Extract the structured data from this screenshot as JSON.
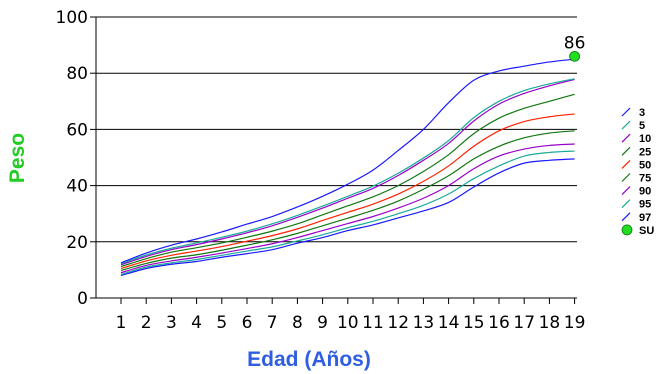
{
  "chart_data": {
    "type": "line",
    "title": "",
    "xlabel": "Edad (Años)",
    "ylabel": "Peso",
    "xlim": [
      1,
      19
    ],
    "ylim": [
      0,
      100
    ],
    "x_ticks": [
      1,
      2,
      3,
      4,
      5,
      6,
      7,
      8,
      9,
      10,
      11,
      12,
      13,
      14,
      15,
      16,
      17,
      18,
      19
    ],
    "y_ticks": [
      0,
      20,
      40,
      60,
      80,
      100
    ],
    "grid": "horizontal",
    "legend_position": "right",
    "x": [
      1,
      2,
      3,
      4,
      5,
      6,
      7,
      8,
      9,
      10,
      11,
      12,
      13,
      14,
      15,
      16,
      17,
      18,
      19
    ],
    "series": [
      {
        "name": "3",
        "color": "#1a1aff",
        "values": [
          8.0,
          10.5,
          12.0,
          13.0,
          14.5,
          15.8,
          17.2,
          19.5,
          21.5,
          24.0,
          26.0,
          28.5,
          31.0,
          34.0,
          39.5,
          44.5,
          48.0,
          49.0,
          49.5
        ]
      },
      {
        "name": "5",
        "color": "#1aaa99",
        "values": [
          8.4,
          11.0,
          12.5,
          13.7,
          15.2,
          16.7,
          18.2,
          20.3,
          22.5,
          25.0,
          27.3,
          30.0,
          33.0,
          37.0,
          42.5,
          47.0,
          50.5,
          51.8,
          52.3
        ]
      },
      {
        "name": "10",
        "color": "#9900cc",
        "values": [
          9.0,
          11.6,
          13.2,
          14.5,
          16.0,
          17.6,
          19.3,
          21.5,
          24.0,
          26.5,
          29.0,
          32.0,
          35.5,
          40.0,
          46.0,
          50.5,
          53.0,
          54.3,
          54.8
        ]
      },
      {
        "name": "25",
        "color": "#117711",
        "values": [
          9.8,
          12.3,
          14.2,
          15.4,
          17.0,
          18.8,
          20.7,
          23.0,
          25.7,
          28.4,
          31.2,
          34.5,
          38.7,
          43.5,
          49.5,
          54.0,
          57.0,
          58.7,
          59.5
        ]
      },
      {
        "name": "50",
        "color": "#ff2200",
        "values": [
          10.5,
          13.2,
          15.2,
          16.7,
          18.3,
          20.2,
          22.2,
          24.6,
          27.6,
          30.5,
          33.4,
          37.0,
          41.5,
          47.0,
          54.0,
          59.5,
          62.8,
          64.5,
          65.5
        ]
      },
      {
        "name": "75",
        "color": "#117711",
        "values": [
          11.2,
          14.0,
          16.3,
          17.9,
          19.6,
          21.6,
          23.8,
          26.4,
          29.6,
          32.8,
          36.0,
          40.0,
          45.0,
          51.0,
          58.5,
          64.0,
          67.5,
          70.0,
          72.5
        ]
      },
      {
        "name": "90",
        "color": "#9900cc",
        "values": [
          11.8,
          14.8,
          17.2,
          19.0,
          21.0,
          23.2,
          25.7,
          28.7,
          32.0,
          35.5,
          39.0,
          43.6,
          49.0,
          55.0,
          63.0,
          69.0,
          72.8,
          75.5,
          77.8
        ]
      },
      {
        "name": "95",
        "color": "#1aaa99",
        "values": [
          12.2,
          15.3,
          17.7,
          19.6,
          21.6,
          23.8,
          26.4,
          29.4,
          32.7,
          36.2,
          39.8,
          44.4,
          49.8,
          56.0,
          64.2,
          70.0,
          73.8,
          76.2,
          78.0
        ]
      },
      {
        "name": "97",
        "color": "#1a1aff",
        "values": [
          12.5,
          16.0,
          18.8,
          21.0,
          23.5,
          26.3,
          29.0,
          32.4,
          36.2,
          40.5,
          45.5,
          52.5,
          60.0,
          69.5,
          77.5,
          80.8,
          82.5,
          84.0,
          85.0
        ]
      }
    ],
    "points": [
      {
        "name": "SU",
        "x": 19,
        "y": 86,
        "label": "86",
        "color": "#22dd22"
      }
    ]
  }
}
